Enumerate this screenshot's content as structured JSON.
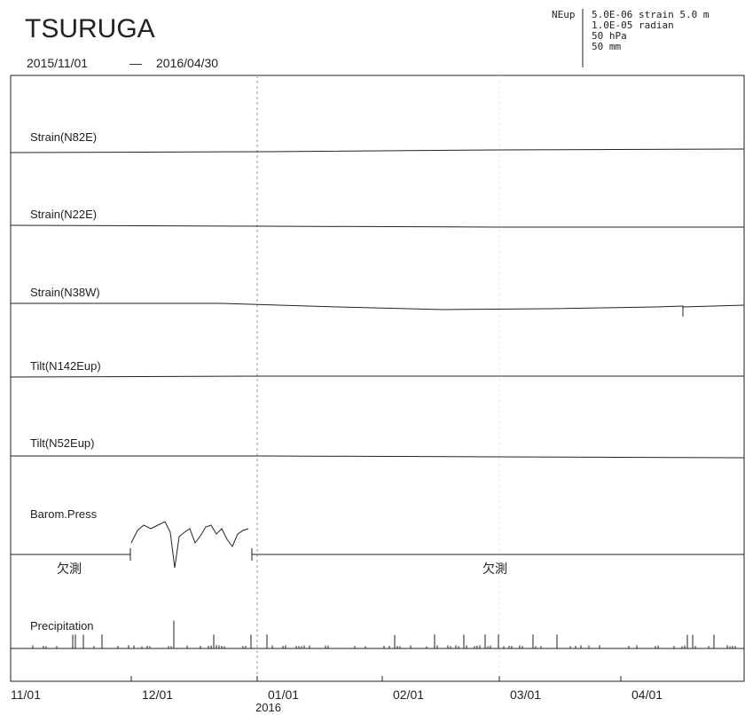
{
  "title": "TSURUGA",
  "period": {
    "start": "2015/11/01",
    "separator": "—",
    "end": "2016/04/30"
  },
  "scale_legend": {
    "component": "NEup",
    "lines": [
      "5.0E-06 strain  5.0 m",
      "1.0E-05 radian",
      "50 hPa",
      "50 mm"
    ]
  },
  "panels": [
    "Strain(N82E)",
    "Strain(N22E)",
    "Strain(N38W)",
    "Tilt(N142Eup)",
    "Tilt(N52Eup)",
    "Barom.Press",
    "Precipitation"
  ],
  "missing_labels": [
    "欠測",
    "欠測"
  ],
  "x_tick_labels": [
    "11/01",
    "12/01",
    "01/01",
    "02/01",
    "03/01",
    "04/01"
  ],
  "year_label": "2016"
}
